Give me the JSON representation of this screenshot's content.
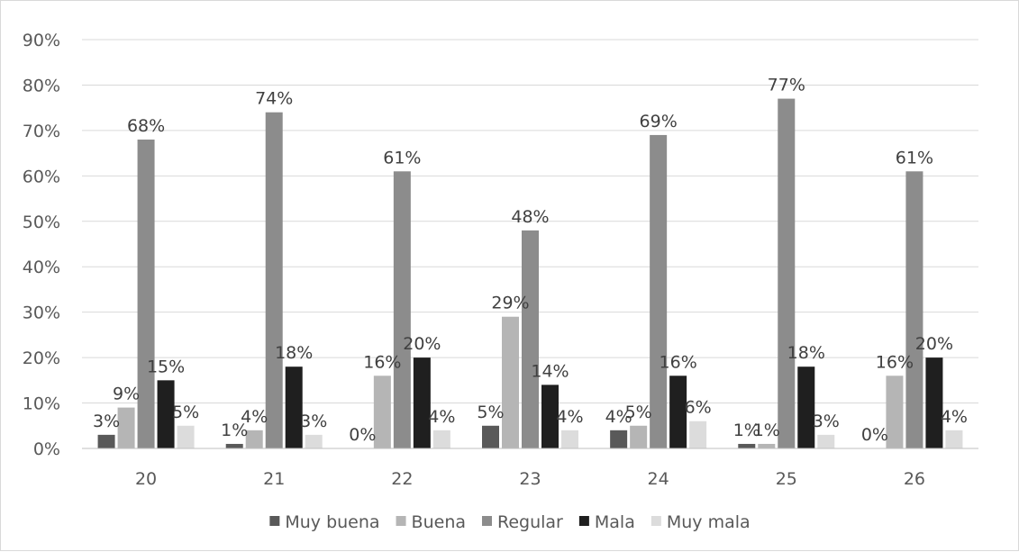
{
  "chart_data": {
    "type": "bar",
    "title": "",
    "xlabel": "",
    "ylabel": "",
    "categories": [
      "20",
      "21",
      "22",
      "23",
      "24",
      "25",
      "26"
    ],
    "ylim": [
      0,
      90
    ],
    "yticks": [
      0,
      10,
      20,
      30,
      40,
      50,
      60,
      70,
      80,
      90
    ],
    "ytick_labels": [
      "0%",
      "10%",
      "20%",
      "30%",
      "40%",
      "50%",
      "60%",
      "70%",
      "80%",
      "90%"
    ],
    "grid": true,
    "legend_position": "bottom",
    "series": [
      {
        "name": "Muy buena",
        "color": "#595959",
        "values": [
          3,
          1,
          0,
          5,
          4,
          1,
          0
        ],
        "labels": [
          "3%",
          "1%",
          "0%",
          "5%",
          "4%",
          "1%",
          "0%"
        ]
      },
      {
        "name": "Buena",
        "color": "#b5b5b5",
        "values": [
          9,
          4,
          16,
          29,
          5,
          1,
          16
        ],
        "labels": [
          "9%",
          "4%",
          "16%",
          "29%",
          "5%",
          "1%",
          "16%"
        ]
      },
      {
        "name": "Regular",
        "color": "#8c8c8c",
        "values": [
          68,
          74,
          61,
          48,
          69,
          77,
          61
        ],
        "labels": [
          "68%",
          "74%",
          "61%",
          "48%",
          "69%",
          "77%",
          "61%"
        ]
      },
      {
        "name": "Mala",
        "color": "#1f1f1f",
        "values": [
          15,
          18,
          20,
          14,
          16,
          18,
          20
        ],
        "labels": [
          "15%",
          "18%",
          "20%",
          "14%",
          "16%",
          "18%",
          "20%"
        ]
      },
      {
        "name": "Muy mala",
        "color": "#dcdcdc",
        "values": [
          5,
          3,
          4,
          4,
          6,
          3,
          4
        ],
        "labels": [
          "5%",
          "3%",
          "4%",
          "4%",
          "6%",
          "3%",
          "4%"
        ]
      }
    ]
  }
}
